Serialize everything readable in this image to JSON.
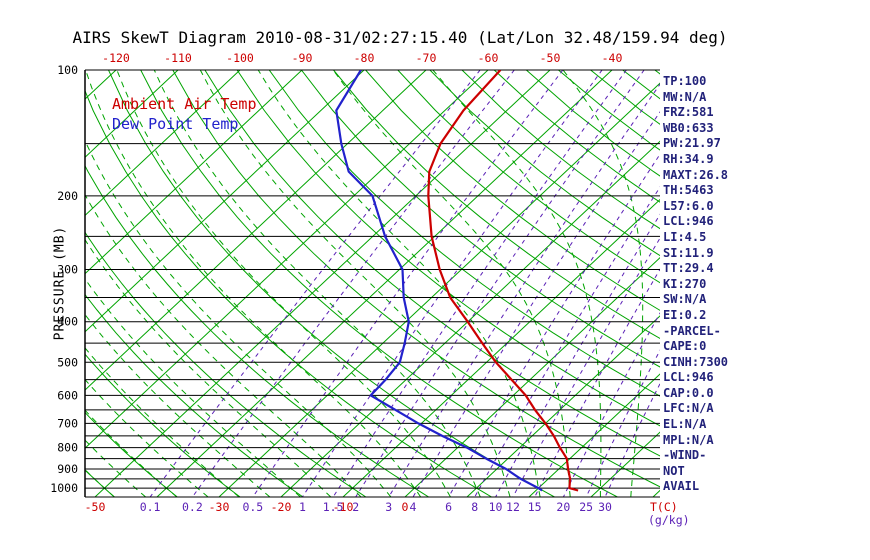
{
  "title": "AIRS SkewT Diagram 2010-08-31/02:27:15.40 (Lat/Lon 32.48/159.94 deg)",
  "legend": {
    "air_temp": "Ambient Air Temp",
    "dew_point": "Dew Point Temp"
  },
  "axes": {
    "pressure_axis_label": "PRESSURE (MB)",
    "temp_unit_label": "T(C)",
    "mixing_unit_label": "(g/kg)",
    "pressure_ticks": [
      100,
      200,
      300,
      400,
      500,
      600,
      700,
      800,
      900,
      1000
    ],
    "top_temp_ticks": [
      -120,
      -110,
      -100,
      -90,
      -80,
      -70,
      -60,
      -50,
      -40
    ],
    "bottom_temp_ticks": [
      -50,
      -30,
      -20,
      -10,
      0
    ],
    "mixing_ratio_ticks": [
      0.1,
      0.2,
      0.5,
      1,
      1.5,
      2,
      3,
      4,
      6,
      8,
      10,
      12,
      15,
      20,
      25,
      30
    ]
  },
  "stats_panel": [
    "TP:100",
    "MW:N/A",
    "FRZ:581",
    "WB0:633",
    "PW:21.97",
    "RH:34.9",
    "MAXT:26.8",
    "TH:5463",
    "L57:6.0",
    "LCL:946",
    "LI:4.5",
    "SI:11.9",
    "TT:29.4",
    "KI:270",
    "SW:N/A",
    "EI:0.2",
    "-PARCEL-",
    "CAPE:0",
    "CINH:7300",
    "LCL:946",
    "CAP:0.0",
    "LFC:N/A",
    "EL:N/A",
    "MPL:N/A",
    "-WIND-",
    "NOT",
    "AVAIL"
  ],
  "colors": {
    "green": "#00a400",
    "purple": "#5b21b6",
    "red": "#cc0000",
    "blue": "#2222cc",
    "black": "#000000",
    "stats_text": "#22227a"
  },
  "chart_data": {
    "type": "line",
    "variant": "skew-t-log-p",
    "title": "AIRS SkewT Diagram 2010-08-31/02:27:15.40 (Lat/Lon 32.48/159.94 deg)",
    "xlabel": "T(C)",
    "ylabel": "PRESSURE (MB)",
    "pressure_range_mb": [
      100,
      1050
    ],
    "pressure_mb": [
      100,
      125,
      150,
      175,
      200,
      250,
      300,
      350,
      400,
      450,
      500,
      550,
      600,
      650,
      700,
      750,
      800,
      850,
      900,
      950,
      1000,
      1013
    ],
    "series": [
      {
        "name": "Ambient Air Temp",
        "color": "#cc0000",
        "values_c": [
          -58,
          -57,
          -55,
          -52,
          -48,
          -40.5,
          -33.5,
          -27,
          -20,
          -14,
          -8.5,
          -3,
          2,
          6,
          10,
          13.5,
          16.5,
          19.5,
          21.5,
          23.5,
          25,
          26.8
        ]
      },
      {
        "name": "Dew Point Temp",
        "color": "#2222cc",
        "values_c": [
          -80.5,
          -77.5,
          -71,
          -65,
          -57,
          -48,
          -39.5,
          -34.5,
          -29.5,
          -26.5,
          -24,
          -23.3,
          -23,
          -16.5,
          -10.5,
          -4.5,
          1.5,
          6.5,
          11.5,
          15.5,
          20,
          21
        ]
      }
    ],
    "grid": {
      "isotherms_c": {
        "min": -130,
        "max": 40,
        "step": 10
      },
      "dry_adiabats_c": {
        "min": -50,
        "max": 190,
        "step": 10
      },
      "moist_adiabats_c": {
        "min": -50,
        "max": 40,
        "step": 5
      },
      "mixing_ratio_g_kg": [
        0.1,
        0.2,
        0.5,
        1,
        1.5,
        2,
        3,
        4,
        6,
        8,
        10,
        12,
        15,
        20,
        25,
        30
      ],
      "pressure_lines_mb": {
        "min": 100,
        "max": 1050,
        "step": 50
      }
    }
  }
}
